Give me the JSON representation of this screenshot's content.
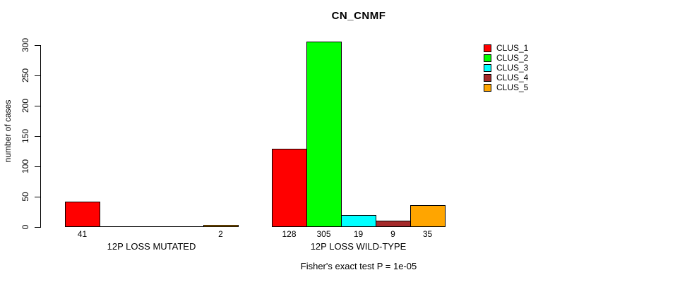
{
  "chart_data": {
    "type": "bar",
    "title": "CN_CNMF",
    "ylabel": "number of cases",
    "xlabel": "",
    "ylim": [
      0,
      300
    ],
    "yticks": [
      0,
      50,
      100,
      150,
      200,
      250,
      300
    ],
    "grid": false,
    "legend_position": "topright",
    "legend": [
      {
        "label": "CLUS_1",
        "color": "#FF0000"
      },
      {
        "label": "CLUS_2",
        "color": "#00FF00"
      },
      {
        "label": "CLUS_3",
        "color": "#00FFFF"
      },
      {
        "label": "CLUS_4",
        "color": "#A52A2A"
      },
      {
        "label": "CLUS_5",
        "color": "#FFA500"
      }
    ],
    "groups": [
      {
        "label": "12P LOSS MUTATED",
        "values": [
          41,
          0,
          0,
          0,
          2
        ],
        "bar_labels": [
          "41",
          "",
          "",
          "",
          "2"
        ]
      },
      {
        "label": "12P LOSS WILD-TYPE",
        "values": [
          128,
          305,
          19,
          9,
          35
        ],
        "bar_labels": [
          "128",
          "305",
          "19",
          "9",
          "35"
        ]
      }
    ],
    "caption": "Fisher's exact test P = 1e-05"
  }
}
